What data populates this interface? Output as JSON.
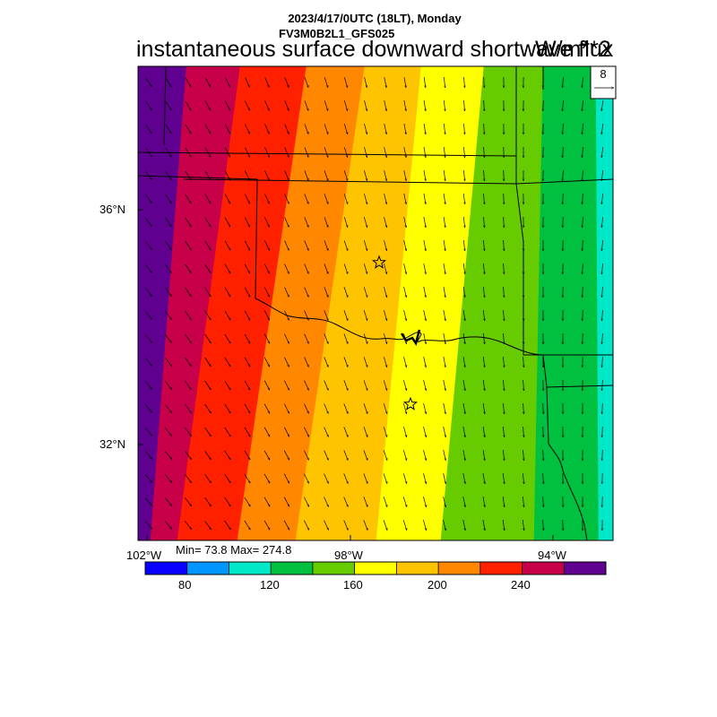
{
  "header": {
    "line1": "2023/4/17/0UTC (18LT), Monday",
    "line2": "FV3M0B2L1_GFS025"
  },
  "title": "instantaneous surface downward shortwave flux",
  "units": "W/m**2",
  "vector_reference": {
    "value": "8"
  },
  "axes": {
    "lat_labels": [
      "36°N",
      "32°N"
    ],
    "lon_labels": [
      "102°W",
      "98°W",
      "94°W"
    ]
  },
  "stats": "Min= 73.8 Max= 274.8",
  "colorbar": {
    "colors": [
      "#0a00ff",
      "#0096ff",
      "#00e8c8",
      "#00c040",
      "#66cc00",
      "#ffff00",
      "#ffc400",
      "#ff8800",
      "#ff2000",
      "#c8004a",
      "#600090"
    ],
    "labels": [
      "80",
      "120",
      "160",
      "200",
      "240"
    ]
  },
  "map_colors": {
    "bands": [
      "#600090",
      "#c8004a",
      "#ff2000",
      "#ff8800",
      "#ffc400",
      "#ffff00",
      "#66cc00",
      "#00c040",
      "#00e8c8"
    ],
    "border": "#000000",
    "vector": "#000000"
  },
  "markers": [
    {
      "type": "star-icon"
    },
    {
      "type": "star-icon"
    }
  ]
}
